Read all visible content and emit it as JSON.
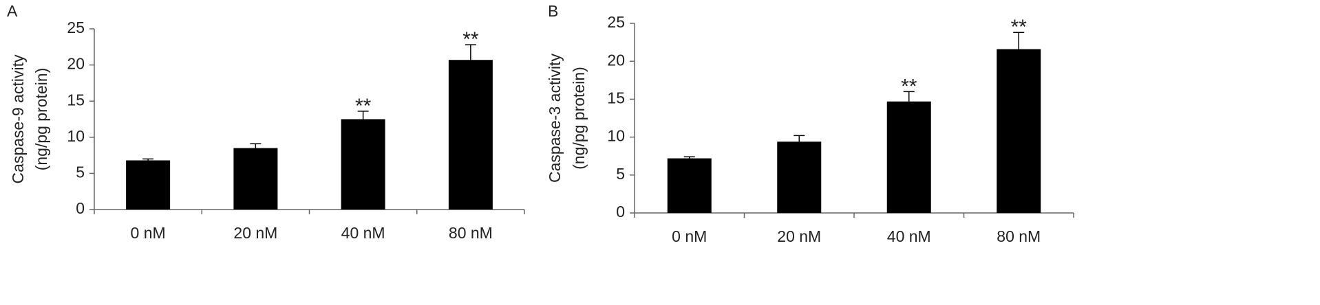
{
  "chart_data": [
    {
      "type": "bar",
      "panel": "A",
      "ylabel": [
        "Caspase-9 activity",
        "(ng/pg protein)"
      ],
      "categories": [
        "0 nM",
        "20 nM",
        "40 nM",
        "80 nM"
      ],
      "values": [
        6.8,
        8.5,
        12.5,
        20.7
      ],
      "errors": [
        0.2,
        0.6,
        1.1,
        2.1
      ],
      "annotations": [
        null,
        null,
        "**",
        "**"
      ],
      "color": "#000000",
      "ylim": [
        0,
        25
      ],
      "yticks": [
        0,
        5,
        10,
        15,
        20,
        25
      ]
    },
    {
      "type": "bar",
      "panel": "B",
      "ylabel": [
        "Caspase-3 activity",
        "(ng/pg protein)"
      ],
      "categories": [
        "0 nM",
        "20 nM",
        "40 nM",
        "80 nM"
      ],
      "values": [
        7.2,
        9.4,
        14.7,
        21.6
      ],
      "errors": [
        0.2,
        0.8,
        1.3,
        2.2
      ],
      "annotations": [
        null,
        null,
        "**",
        "**"
      ],
      "color": "#000000",
      "ylim": [
        0,
        25
      ],
      "yticks": [
        0,
        5,
        10,
        15,
        20,
        25
      ]
    }
  ]
}
